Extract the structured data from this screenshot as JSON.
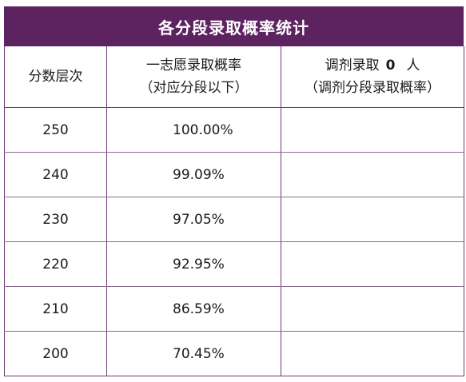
{
  "title": "各分段录取概率统计",
  "headers": {
    "col1": "分数层次",
    "col2_line1": "一志愿录取概率",
    "col2_line2": "（对应分段以下）",
    "col3_line1_prefix": "调剂录取",
    "col3_line1_count": "0",
    "col3_line1_suffix": "人",
    "col3_line2": "（调剂分段录取概率）"
  },
  "rows": [
    {
      "score": "250",
      "rate": "100.00%",
      "adjust": ""
    },
    {
      "score": "240",
      "rate": "99.09%",
      "adjust": ""
    },
    {
      "score": "230",
      "rate": "97.05%",
      "adjust": ""
    },
    {
      "score": "220",
      "rate": "92.95%",
      "adjust": ""
    },
    {
      "score": "210",
      "rate": "86.59%",
      "adjust": ""
    },
    {
      "score": "200",
      "rate": "70.45%",
      "adjust": ""
    }
  ],
  "colors": {
    "header_bg": "#5c2360",
    "border": "#6d3a72",
    "text": "#1a1a1a"
  }
}
